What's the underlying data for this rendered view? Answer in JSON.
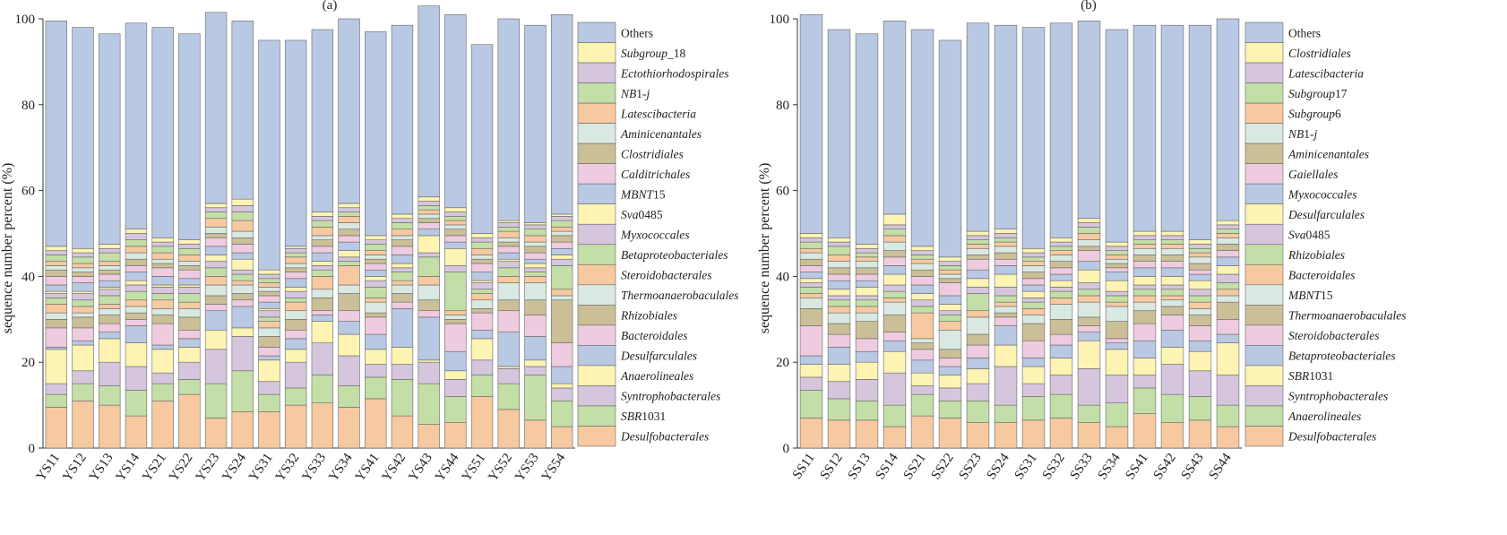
{
  "chart_data": [
    {
      "type": "bar",
      "stacked": true,
      "title": "(a)",
      "xlabel": "",
      "ylabel": "sequence number percent (%)",
      "ylim": [
        0,
        100
      ],
      "yticks": [
        0,
        20,
        40,
        60,
        80,
        100
      ],
      "grid": false,
      "legend_position": "right",
      "categories": [
        "YS11",
        "YS12",
        "YS13",
        "YS14",
        "YS21",
        "YS22",
        "YS23",
        "YS24",
        "YS31",
        "YS32",
        "YS33",
        "YS34",
        "YS41",
        "YS42",
        "YS43",
        "YS44",
        "YS51",
        "YS52",
        "YS53",
        "YS54"
      ],
      "series": [
        {
          "name": "Desulfobacterales",
          "color": "#f7c9a1",
          "values": [
            9.5,
            11,
            10,
            7.5,
            11,
            12.5,
            7,
            8.5,
            8.5,
            10,
            10.5,
            9.5,
            11.5,
            7.5,
            5.5,
            6,
            12,
            9,
            6.5,
            5
          ]
        },
        {
          "name": "SBR1031",
          "color": "#c3dfa7",
          "values": [
            3,
            4,
            4.5,
            6,
            4,
            3.5,
            8,
            9.5,
            4,
            4,
            6.5,
            5,
            5,
            8.5,
            9.5,
            6,
            5,
            6,
            10.5,
            6
          ]
        },
        {
          "name": "Syntrophobacterales",
          "color": "#d5c6dd",
          "values": [
            2.5,
            3,
            5.5,
            5.5,
            2.5,
            4,
            8,
            8,
            3,
            6,
            7.5,
            7,
            3,
            3.5,
            5,
            4,
            3.5,
            3.5,
            2,
            3
          ]
        },
        {
          "name": "Anaerolineales",
          "color": "#fdf3b3",
          "values": [
            8,
            6,
            5.5,
            5.5,
            5.5,
            3.5,
            4.5,
            2,
            5,
            3,
            5,
            5,
            3.5,
            4,
            0.5,
            2,
            5,
            0.5,
            1.5,
            1
          ]
        },
        {
          "name": "Desulfarculales",
          "color": "#b9c8e3",
          "values": [
            0.5,
            1,
            1.5,
            4,
            1,
            2,
            4.5,
            5,
            1,
            2.5,
            1.5,
            3,
            3.5,
            9,
            10,
            4.5,
            2,
            8,
            5.5,
            4
          ]
        },
        {
          "name": "Bacteroidales",
          "color": "#efcbe0",
          "values": [
            4.5,
            3,
            2,
            1.5,
            5,
            2,
            1.5,
            1.5,
            2,
            2,
            1,
            2.5,
            4,
            1.5,
            1.5,
            6.5,
            4,
            5,
            5,
            5.5
          ]
        },
        {
          "name": "Rhizobiales",
          "color": "#cbbf97",
          "values": [
            2,
            2.5,
            2,
            1.5,
            2,
            3,
            2,
            1.5,
            2.5,
            2.5,
            3,
            4,
            1,
            2,
            2.5,
            1,
            1,
            2.5,
            3.5,
            10
          ]
        },
        {
          "name": "Thermoanaerobaculales",
          "color": "#d9e9e1",
          "values": [
            1.5,
            1,
            1.5,
            1.5,
            1.5,
            2,
            2.5,
            2,
            2,
            2,
            2,
            2,
            2.5,
            2,
            3.5,
            1,
            2,
            4,
            4,
            1
          ]
        },
        {
          "name": "Steroidobacterales",
          "color": "#f7c9a1",
          "values": [
            2,
            1.5,
            1,
            1.5,
            2,
            1.5,
            2,
            1,
            1.5,
            2,
            3,
            4.5,
            1,
            1,
            2,
            1,
            1.5,
            1.5,
            1.5,
            1.5
          ]
        },
        {
          "name": "Betaproteobacteriales",
          "color": "#c3dfa7",
          "values": [
            1.5,
            1.5,
            2,
            2,
            1.5,
            2,
            2,
            1.5,
            1,
            1,
            1.5,
            1,
            2.5,
            2,
            4.5,
            9,
            1,
            2,
            1,
            5.5
          ]
        },
        {
          "name": "Myxococcales",
          "color": "#d5c6dd",
          "values": [
            1,
            1.5,
            1.5,
            1.5,
            1.5,
            1.5,
            1.5,
            1,
            1.5,
            1.5,
            1,
            1,
            1.5,
            1,
            1,
            1.5,
            1.5,
            1.5,
            1,
            1.5
          ]
        },
        {
          "name": "Sva0485",
          "color": "#fdf3b3",
          "values": [
            0.5,
            0.5,
            0.5,
            1,
            0.5,
            0.5,
            1.5,
            2.5,
            0.5,
            1,
            1,
            1.5,
            1,
            1,
            4,
            4,
            0.5,
            0.5,
            1,
            1
          ]
        },
        {
          "name": "MBNT15",
          "color": "#b9c8e3",
          "values": [
            1.5,
            2,
            1.5,
            2,
            2,
            1.5,
            2,
            1.5,
            1.5,
            2,
            2,
            2,
            1.5,
            2,
            1.5,
            1.5,
            2,
            1.5,
            1,
            1.5
          ]
        },
        {
          "name": "Calditrichales",
          "color": "#efcbe0",
          "values": [
            2,
            1.5,
            1.5,
            1.5,
            2,
            2,
            2,
            2,
            1.5,
            1.5,
            1.5,
            1.5,
            1.5,
            2,
            1.5,
            1.5,
            2,
            1.5,
            1.5,
            1.5
          ]
        },
        {
          "name": "Clostridiales",
          "color": "#cbbf97",
          "values": [
            1.5,
            1,
            1,
            1.5,
            1,
            1,
            1,
            1.5,
            1,
            1,
            1.5,
            1.5,
            1,
            1.5,
            1,
            1.5,
            1,
            1,
            1.5,
            1.5
          ]
        },
        {
          "name": "Aminicenantales",
          "color": "#d9e9e1",
          "values": [
            1,
            1,
            1,
            1.5,
            1,
            1,
            1.5,
            1.5,
            1,
            1,
            1,
            1.5,
            1,
            1,
            1,
            1,
            1,
            1,
            1,
            1
          ]
        },
        {
          "name": "Latescibacteria",
          "color": "#f7c9a1",
          "values": [
            1,
            1,
            1,
            1.5,
            1.5,
            1.5,
            2,
            2.5,
            1,
            1.5,
            2,
            1.5,
            1,
            1.5,
            1,
            1,
            1.5,
            1.5,
            1.5,
            1
          ]
        },
        {
          "name": "NB1-j",
          "color": "#c3dfa7",
          "values": [
            1.5,
            1.5,
            2,
            1.5,
            1.5,
            1.5,
            1.5,
            2,
            1,
            1,
            1.5,
            1,
            1.5,
            1.5,
            1,
            1,
            1.5,
            1,
            1.5,
            1.5
          ]
        },
        {
          "name": "Ectothiorhodospirales",
          "color": "#d5c6dd",
          "values": [
            1,
            1,
            1,
            1.5,
            1,
            1,
            1,
            1.5,
            1,
            1,
            1,
            1,
            1,
            1,
            1,
            1,
            1,
            1,
            1,
            1
          ]
        },
        {
          "name": "Subgroup_18",
          "color": "#fdf3b3",
          "values": [
            1,
            1,
            1,
            1,
            1,
            1,
            1,
            1.5,
            1,
            0.5,
            1,
            1,
            1,
            1,
            1,
            1,
            1,
            0.5,
            0.5,
            0.5
          ]
        },
        {
          "name": "Others",
          "color": "#b9c8e3",
          "values": [
            52.5,
            51.5,
            49,
            48,
            49,
            48,
            44.5,
            41.5,
            53.5,
            48,
            42.5,
            43,
            47.5,
            44,
            44.5,
            45,
            44,
            47,
            46,
            46.5
          ]
        }
      ]
    },
    {
      "type": "bar",
      "stacked": true,
      "title": "(b)",
      "xlabel": "",
      "ylabel": "sequence number percent (%)",
      "ylim": [
        0,
        100
      ],
      "yticks": [
        0,
        20,
        40,
        60,
        80,
        100
      ],
      "grid": false,
      "legend_position": "right",
      "categories": [
        "SS11",
        "SS12",
        "SS13",
        "SS14",
        "SS21",
        "SS22",
        "SS23",
        "SS24",
        "SS31",
        "SS32",
        "SS33",
        "SS34",
        "SS41",
        "SS42",
        "SS43",
        "SS44"
      ],
      "series": [
        {
          "name": "Desulfobacterales",
          "color": "#f7c9a1",
          "values": [
            7,
            6.5,
            6.5,
            5,
            7.5,
            7,
            6,
            6,
            6.5,
            7,
            6,
            5,
            8,
            6,
            6.5,
            5
          ]
        },
        {
          "name": "Anaerolineales",
          "color": "#c3dfa7",
          "values": [
            6.5,
            5,
            4.5,
            5,
            5,
            4,
            5,
            4,
            5.5,
            5.5,
            4,
            5.5,
            6,
            6.5,
            5.5,
            5
          ]
        },
        {
          "name": "Syntrophobacterales",
          "color": "#d5c6dd",
          "values": [
            3,
            4,
            5,
            7.5,
            2,
            3,
            4,
            9,
            3,
            4.5,
            8.5,
            6.5,
            3,
            7,
            6,
            7
          ]
        },
        {
          "name": "SBR1031",
          "color": "#fdf3b3",
          "values": [
            3,
            4,
            4,
            5,
            3,
            3,
            3.5,
            5,
            4,
            4,
            6.5,
            6,
            4,
            4,
            4.5,
            7.5
          ]
        },
        {
          "name": "Betaproteobacteriales",
          "color": "#b9c8e3",
          "values": [
            2,
            4,
            2.5,
            2.5,
            3,
            2,
            2.5,
            4.5,
            2,
            3,
            2,
            1.5,
            4,
            4,
            2.5,
            2
          ]
        },
        {
          "name": "Steroidobacterales",
          "color": "#efcbe0",
          "values": [
            7,
            3,
            3,
            2,
            2.5,
            2,
            3,
            2,
            4,
            2.5,
            1.5,
            1,
            4,
            3.5,
            3.5,
            3.5
          ]
        },
        {
          "name": "Thermoanaerobaculales",
          "color": "#cbbf97",
          "values": [
            4,
            2.5,
            4,
            4,
            1.5,
            2,
            2.5,
            1,
            4,
            3.5,
            2,
            4,
            3,
            2,
            2.5,
            4
          ]
        },
        {
          "name": "MBNT15",
          "color": "#d9e9e1",
          "values": [
            2.5,
            2.5,
            2,
            3,
            1,
            4.5,
            4,
            1.5,
            2,
            3.5,
            3.5,
            3.5,
            2,
            1.5,
            1.5,
            1.5
          ]
        },
        {
          "name": "Bacteroidales",
          "color": "#f7c9a1",
          "values": [
            1,
            1.5,
            1.5,
            1,
            6,
            2,
            1.5,
            1,
            1.5,
            1.5,
            1.5,
            1,
            1.5,
            1,
            1.5,
            1.5
          ]
        },
        {
          "name": "Rhizobiales",
          "color": "#c3dfa7",
          "values": [
            1.5,
            1.5,
            1.5,
            1.5,
            1.5,
            1.5,
            4,
            1.5,
            1.5,
            1.5,
            1.5,
            1.5,
            1.5,
            1.5,
            1.5,
            1.5
          ]
        },
        {
          "name": "Sva0485",
          "color": "#d5c6dd",
          "values": [
            1,
            1,
            1,
            1.5,
            1.5,
            1,
            1.5,
            2,
            1,
            1,
            1.5,
            1,
            1,
            1,
            1.5,
            2
          ]
        },
        {
          "name": "Desulfarculales",
          "color": "#fdf3b3",
          "values": [
            1,
            1.5,
            2,
            2.5,
            1.5,
            1.5,
            2,
            3,
            1.5,
            1.5,
            3,
            2.5,
            2,
            2,
            2,
            2
          ]
        },
        {
          "name": "Myxococcales",
          "color": "#b9c8e3",
          "values": [
            1.5,
            2,
            1.5,
            2,
            2,
            2,
            2,
            2,
            1.5,
            1.5,
            2,
            2,
            2,
            2,
            1.5,
            2
          ]
        },
        {
          "name": "Gaiellales",
          "color": "#efcbe0",
          "values": [
            1.5,
            1.5,
            1.5,
            2,
            2,
            3,
            2.5,
            1.5,
            1.5,
            1.5,
            2.5,
            1,
            1.5,
            1.5,
            1,
            1.5
          ]
        },
        {
          "name": "Aminicenantales",
          "color": "#cbbf97",
          "values": [
            1.5,
            1.5,
            1.5,
            1.5,
            1.5,
            1,
            1,
            1.5,
            1.5,
            1.5,
            1,
            1,
            1.5,
            1.5,
            1.5,
            1.5
          ]
        },
        {
          "name": "NB1-j",
          "color": "#d9e9e1",
          "values": [
            1.5,
            1.5,
            1.5,
            2,
            1.5,
            1,
            1.5,
            1.5,
            1.5,
            1.5,
            1.5,
            1,
            1.5,
            1.5,
            1.5,
            1.5
          ]
        },
        {
          "name": "Subgroup6",
          "color": "#f7c9a1",
          "values": [
            1,
            1.5,
            1,
            1.5,
            1,
            1,
            1,
            1,
            1,
            1,
            1.5,
            1,
            1,
            1,
            1,
            1
          ]
        },
        {
          "name": "Subgroup17",
          "color": "#c3dfa7",
          "values": [
            1.5,
            2,
            1,
            1.5,
            1,
            1,
            1,
            1,
            1,
            1,
            1.5,
            1,
            1,
            1,
            1,
            1
          ]
        },
        {
          "name": "Latescibacteria",
          "color": "#d5c6dd",
          "values": [
            1,
            1,
            1,
            1,
            1,
            1,
            1,
            1,
            1,
            1,
            1,
            1,
            1,
            1,
            1,
            1
          ]
        },
        {
          "name": "Clostridiales",
          "color": "#fdf3b3",
          "values": [
            1,
            1,
            1,
            2.5,
            1,
            1,
            1,
            1,
            1,
            1,
            1,
            1,
            1,
            1,
            1,
            1
          ]
        },
        {
          "name": "Others",
          "color": "#b9c8e3",
          "values": [
            51,
            48.5,
            49,
            45,
            50.5,
            50.5,
            48.5,
            47.5,
            51.5,
            50,
            46,
            49.5,
            48,
            48,
            50,
            47
          ]
        }
      ]
    }
  ]
}
